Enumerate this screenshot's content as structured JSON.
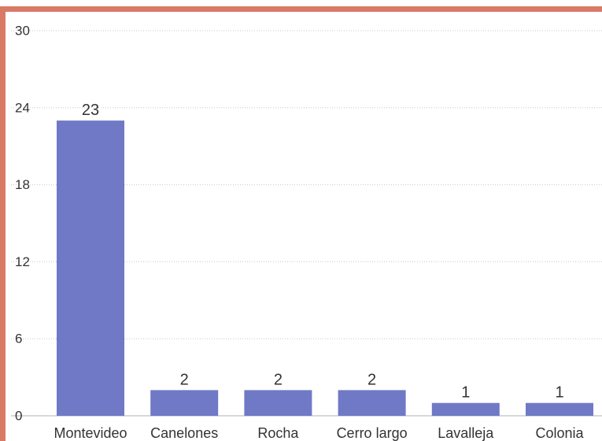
{
  "chart_data": {
    "type": "bar",
    "categories": [
      "Montevideo",
      "Canelones",
      "Rocha",
      "Cerro largo",
      "Lavalleja",
      "Colonia"
    ],
    "values": [
      23,
      2,
      2,
      2,
      1,
      1
    ],
    "data_labels": [
      "23",
      "2",
      "2",
      "2",
      "1",
      "1"
    ],
    "yticks": [
      0,
      6,
      12,
      18,
      24,
      30
    ],
    "ylim": [
      0,
      30
    ],
    "title": "",
    "xlabel": "",
    "ylabel": "",
    "grid": true,
    "legend": "none",
    "bar_color": "#6f79c6",
    "frame_color": "#d97a66"
  }
}
